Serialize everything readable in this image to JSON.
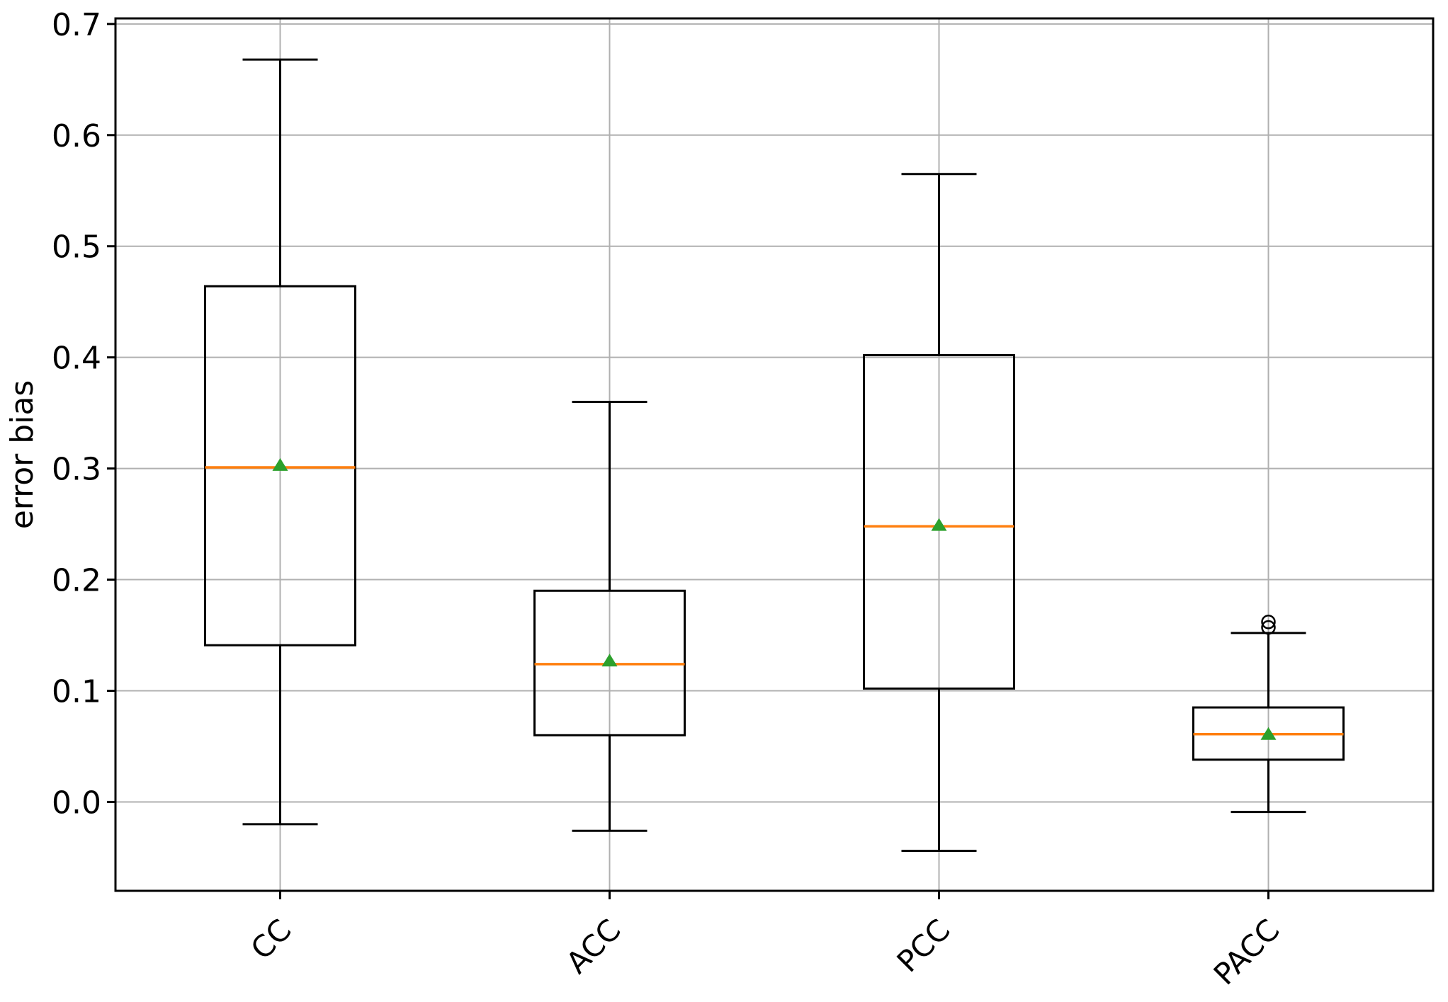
{
  "chart_data": {
    "type": "boxplot",
    "title": "",
    "ylabel": "error bias",
    "xlabel": "",
    "categories": [
      "CC",
      "ACC",
      "PCC",
      "PACC"
    ],
    "ytick_values": [
      0.0,
      0.1,
      0.2,
      0.3,
      0.4,
      0.5,
      0.6,
      0.7
    ],
    "ytick_labels": [
      "0.0",
      "0.1",
      "0.2",
      "0.3",
      "0.4",
      "0.5",
      "0.6",
      "0.7"
    ],
    "ylim": [
      -0.08,
      0.705
    ],
    "grid": true,
    "legend_position": "none",
    "xtick_rotation_deg": 45,
    "series": [
      {
        "label": "CC",
        "whisker_low": -0.02,
        "q1": 0.141,
        "median": 0.301,
        "q3": 0.464,
        "whisker_high": 0.668,
        "mean": 0.303,
        "outliers": []
      },
      {
        "label": "ACC",
        "whisker_low": -0.026,
        "q1": 0.06,
        "median": 0.124,
        "q3": 0.19,
        "whisker_high": 0.36,
        "mean": 0.127,
        "outliers": []
      },
      {
        "label": "PCC",
        "whisker_low": -0.044,
        "q1": 0.102,
        "median": 0.248,
        "q3": 0.402,
        "whisker_high": 0.565,
        "mean": 0.249,
        "outliers": []
      },
      {
        "label": "PACC",
        "whisker_low": -0.009,
        "q1": 0.038,
        "median": 0.061,
        "q3": 0.085,
        "whisker_high": 0.152,
        "mean": 0.061,
        "outliers": [
          0.157,
          0.162
        ]
      }
    ],
    "colors": {
      "median": "#ff7f0e",
      "mean": "#2ca02c",
      "box_line": "#000000",
      "grid": "#b0b0b0",
      "spine": "#000000",
      "background": "#ffffff"
    }
  }
}
